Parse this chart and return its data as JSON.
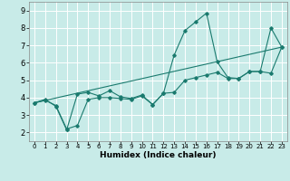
{
  "xlabel": "Humidex (Indice chaleur)",
  "ylabel": "",
  "background_color": "#c8ebe8",
  "grid_color": "#ffffff",
  "line_color": "#1a7a6e",
  "x_ticks": [
    0,
    1,
    2,
    3,
    4,
    5,
    6,
    7,
    8,
    9,
    10,
    11,
    12,
    13,
    14,
    15,
    16,
    17,
    18,
    19,
    20,
    21,
    22,
    23
  ],
  "y_ticks": [
    2,
    3,
    4,
    5,
    6,
    7,
    8,
    9
  ],
  "xlim": [
    -0.5,
    23.5
  ],
  "ylim": [
    1.5,
    9.5
  ],
  "series": [
    {
      "x": [
        0,
        1,
        2,
        3,
        4,
        5,
        6,
        7,
        8,
        9,
        10,
        11,
        12,
        13,
        14,
        15,
        16,
        17,
        18,
        19,
        20,
        21,
        22,
        23
      ],
      "y": [
        3.7,
        3.9,
        3.5,
        2.15,
        4.2,
        4.3,
        4.1,
        4.4,
        4.05,
        3.95,
        4.15,
        3.6,
        4.25,
        6.45,
        7.85,
        8.35,
        8.85,
        6.05,
        5.15,
        5.1,
        5.5,
        5.5,
        8.0,
        6.9
      ]
    },
    {
      "x": [
        0,
        1,
        2,
        3,
        4,
        5,
        6,
        7,
        8,
        9,
        10,
        11,
        12,
        13,
        14,
        15,
        16,
        17,
        18,
        19,
        20,
        21,
        22,
        23
      ],
      "y": [
        3.7,
        3.85,
        3.55,
        2.2,
        2.4,
        3.9,
        4.0,
        4.0,
        3.95,
        3.9,
        4.1,
        3.6,
        4.25,
        4.3,
        5.0,
        5.15,
        5.3,
        5.45,
        5.1,
        5.1,
        5.5,
        5.5,
        5.4,
        6.9
      ]
    },
    {
      "x": [
        0,
        23
      ],
      "y": [
        3.7,
        6.9
      ]
    }
  ]
}
